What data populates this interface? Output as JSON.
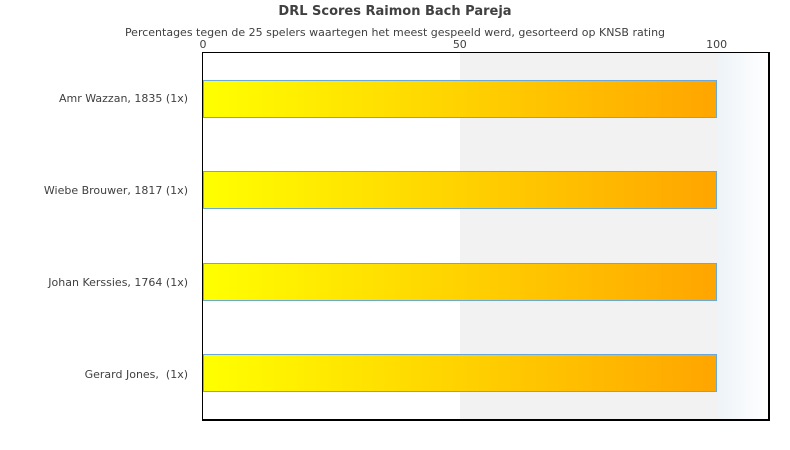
{
  "colors": {
    "bar_gradient_start": "#ffff00",
    "bar_gradient_end": "#ffa500",
    "bar_border": "#6aa7dd",
    "band_fill": "#f2f2f2",
    "overflow_gradient_start": "#edf3f8",
    "overflow_gradient_end": "#ffffff",
    "plot_border": "#000000",
    "text": "#404040"
  },
  "chart_data": {
    "type": "bar",
    "orientation": "horizontal",
    "title": "DRL Scores Raimon Bach Pareja",
    "subtitle": "Percentages tegen de 25 spelers waartegen het meest gespeeld werd, gesorteerd op KNSB rating",
    "categories": [
      "Amr Wazzan, 1835 (1x)",
      "Wiebe Brouwer, 1817 (1x)",
      "Johan Kerssies, 1764 (1x)",
      "Gerard Jones,  (1x)"
    ],
    "values": [
      100,
      100,
      100,
      100
    ],
    "xlabel": "",
    "ylabel": "",
    "xlim": [
      0,
      110
    ],
    "xticks": [
      0,
      50,
      100
    ],
    "shaded_band_x": [
      50,
      100
    ],
    "grid": false,
    "legend": false,
    "axis_position": "top"
  }
}
